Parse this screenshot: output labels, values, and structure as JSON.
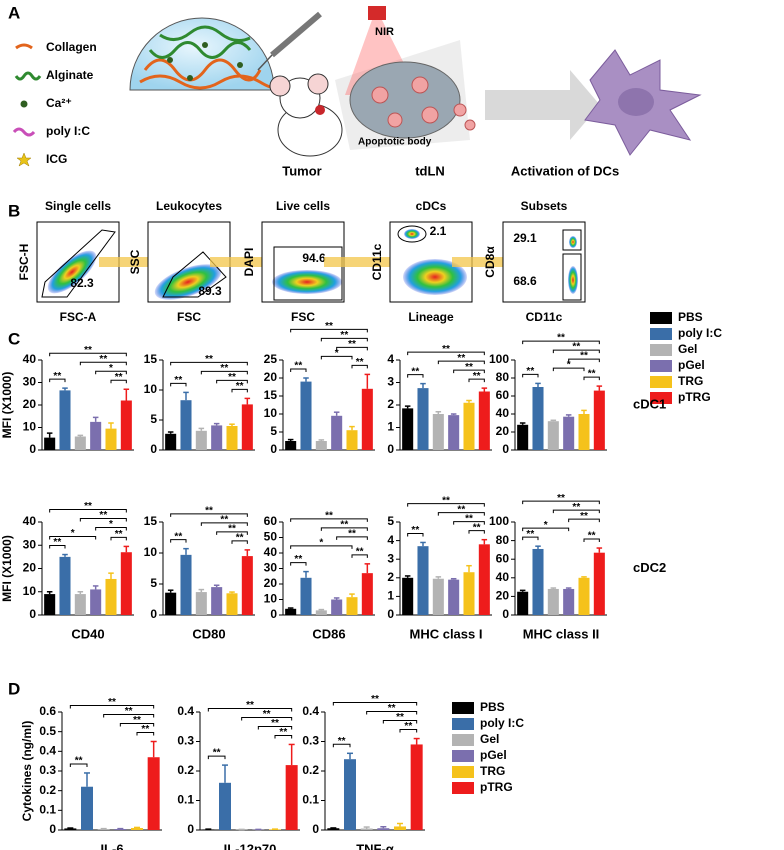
{
  "panel_a": {
    "label": "A",
    "legend": [
      "Collagen",
      "Alginate",
      "Ca²⁺",
      "poly I:C",
      "ICG"
    ],
    "nir": "NIR",
    "apoptotic": "Apoptotic body",
    "tumor": "Tumor",
    "tdln": "tdLN",
    "activation": "Activation of DCs"
  },
  "panel_b": {
    "label": "B",
    "plots": [
      {
        "title": "Single cells",
        "xlabel": "FSC-A",
        "ylabel": "FSC-H",
        "gates": [
          82.3
        ]
      },
      {
        "title": "Leukocytes",
        "xlabel": "FSC",
        "ylabel": "SSC",
        "gates": [
          89.3
        ]
      },
      {
        "title": "Live cells",
        "xlabel": "FSC",
        "ylabel": "DAPI",
        "gates": [
          94.6
        ]
      },
      {
        "title": "cDCs",
        "xlabel": "Lineage",
        "ylabel": "CD11c",
        "gates": [
          2.1
        ]
      },
      {
        "title": "Subsets",
        "xlabel": "CD11c",
        "ylabel": "CD8α",
        "gates": [
          29.1,
          68.6
        ]
      }
    ]
  },
  "panel_c": {
    "label": "C",
    "legend": [
      "PBS",
      "poly I:C",
      "Gel",
      "pGel",
      "TRG",
      "pTRG"
    ]
  },
  "panel_d": {
    "label": "D",
    "legend": [
      "PBS",
      "poly I:C",
      "Gel",
      "pGel",
      "TRG",
      "pTRG"
    ]
  },
  "colors": [
    "#000000",
    "#3a6ea8",
    "#b3b3b3",
    "#7b6fae",
    "#f5c21b",
    "#ee1c1c"
  ],
  "chart_data": [
    {
      "type": "bar",
      "ylabel": "MFI (X1000)",
      "ylim": [
        0,
        40
      ],
      "yticks": [
        0,
        10,
        20,
        30,
        40
      ],
      "values": [
        5.5,
        26.5,
        6,
        12.5,
        9.5,
        22
      ],
      "errors": [
        2,
        1,
        0.5,
        2,
        2.5,
        5
      ],
      "brackets": [
        {
          "from": 0,
          "to": 1,
          "label": "**"
        },
        {
          "from": 4,
          "to": 5,
          "label": "**"
        },
        {
          "from": 3,
          "to": 5,
          "label": "*"
        },
        {
          "from": 2,
          "to": 5,
          "label": "**"
        },
        {
          "from": 0,
          "to": 5,
          "label": "**"
        }
      ]
    },
    {
      "type": "bar",
      "ylim": [
        0,
        15
      ],
      "yticks": [
        0,
        5,
        10,
        15
      ],
      "values": [
        2.7,
        8.3,
        3.2,
        4.1,
        4,
        7.6
      ],
      "errors": [
        0.3,
        1.3,
        0.4,
        0.3,
        0.3,
        1
      ],
      "brackets": [
        {
          "from": 0,
          "to": 1,
          "label": "**"
        },
        {
          "from": 4,
          "to": 5,
          "label": "**"
        },
        {
          "from": 3,
          "to": 5,
          "label": "**"
        },
        {
          "from": 2,
          "to": 5,
          "label": "**"
        },
        {
          "from": 0,
          "to": 5,
          "label": "**"
        }
      ]
    },
    {
      "type": "bar",
      "ylim": [
        0,
        25
      ],
      "yticks": [
        0,
        5,
        10,
        15,
        20,
        25
      ],
      "values": [
        2.5,
        19,
        2.5,
        9.5,
        5.5,
        17
      ],
      "errors": [
        0.4,
        1,
        0.3,
        1,
        1,
        4
      ],
      "brackets": [
        {
          "from": 0,
          "to": 1,
          "label": "**"
        },
        {
          "from": 4,
          "to": 5,
          "label": "**"
        },
        {
          "from": 2,
          "to": 4,
          "label": "*"
        },
        {
          "from": 3,
          "to": 5,
          "label": "**"
        },
        {
          "from": 2,
          "to": 5,
          "label": "**"
        },
        {
          "from": 0,
          "to": 5,
          "label": "**"
        }
      ]
    },
    {
      "type": "bar",
      "ylim": [
        0,
        4
      ],
      "yticks": [
        0,
        1,
        2,
        3,
        4
      ],
      "values": [
        1.85,
        2.75,
        1.6,
        1.55,
        2.1,
        2.6
      ],
      "errors": [
        0.1,
        0.2,
        0.1,
        0.05,
        0.1,
        0.15
      ],
      "brackets": [
        {
          "from": 0,
          "to": 1,
          "label": "**"
        },
        {
          "from": 4,
          "to": 5,
          "label": "**"
        },
        {
          "from": 3,
          "to": 5,
          "label": "**"
        },
        {
          "from": 2,
          "to": 5,
          "label": "**"
        },
        {
          "from": 0,
          "to": 5,
          "label": "**"
        }
      ]
    },
    {
      "type": "bar",
      "row_label": "cDC1",
      "ylim": [
        0,
        100
      ],
      "yticks": [
        0,
        20,
        40,
        60,
        80,
        100
      ],
      "values": [
        28,
        70,
        32,
        37,
        40,
        66
      ],
      "errors": [
        2,
        4,
        1,
        2,
        4,
        5
      ],
      "brackets": [
        {
          "from": 0,
          "to": 1,
          "label": "**"
        },
        {
          "from": 4,
          "to": 5,
          "label": "**"
        },
        {
          "from": 2,
          "to": 4,
          "label": "*"
        },
        {
          "from": 3,
          "to": 5,
          "label": "**"
        },
        {
          "from": 2,
          "to": 5,
          "label": "**"
        },
        {
          "from": 0,
          "to": 5,
          "label": "**"
        }
      ]
    },
    {
      "type": "bar",
      "ylabel": "MFI (X1000)",
      "xlabel": "CD40",
      "ylim": [
        0,
        40
      ],
      "yticks": [
        0,
        10,
        20,
        30,
        40
      ],
      "values": [
        9,
        25,
        9,
        11,
        15.5,
        27
      ],
      "errors": [
        1,
        1,
        1,
        1.5,
        2.5,
        2.5
      ],
      "brackets": [
        {
          "from": 0,
          "to": 1,
          "label": "**"
        },
        {
          "from": 4,
          "to": 5,
          "label": "**"
        },
        {
          "from": 0,
          "to": 3,
          "label": "*"
        },
        {
          "from": 3,
          "to": 5,
          "label": "*"
        },
        {
          "from": 2,
          "to": 5,
          "label": "**"
        },
        {
          "from": 0,
          "to": 5,
          "label": "**"
        }
      ]
    },
    {
      "type": "bar",
      "xlabel": "CD80",
      "ylim": [
        0,
        15
      ],
      "yticks": [
        0,
        5,
        10,
        15
      ],
      "values": [
        3.6,
        9.7,
        3.7,
        4.5,
        3.5,
        9.5
      ],
      "errors": [
        0.4,
        1,
        0.4,
        0.3,
        0.2,
        1
      ],
      "brackets": [
        {
          "from": 0,
          "to": 1,
          "label": "**"
        },
        {
          "from": 4,
          "to": 5,
          "label": "**"
        },
        {
          "from": 3,
          "to": 5,
          "label": "**"
        },
        {
          "from": 2,
          "to": 5,
          "label": "**"
        },
        {
          "from": 0,
          "to": 5,
          "label": "**"
        }
      ]
    },
    {
      "type": "bar",
      "xlabel": "CD86",
      "ylim": [
        0,
        60
      ],
      "yticks": [
        0,
        10,
        20,
        30,
        40,
        50,
        60
      ],
      "values": [
        4,
        24,
        3,
        10,
        11.5,
        27
      ],
      "errors": [
        0.5,
        4,
        0.5,
        1,
        2,
        6
      ],
      "brackets": [
        {
          "from": 0,
          "to": 1,
          "label": "**"
        },
        {
          "from": 4,
          "to": 5,
          "label": "**"
        },
        {
          "from": 0,
          "to": 4,
          "label": "*"
        },
        {
          "from": 3,
          "to": 5,
          "label": "**"
        },
        {
          "from": 2,
          "to": 5,
          "label": "**"
        },
        {
          "from": 0,
          "to": 5,
          "label": "**"
        }
      ]
    },
    {
      "type": "bar",
      "xlabel": "MHC class I",
      "ylim": [
        0,
        5
      ],
      "yticks": [
        0,
        1,
        2,
        3,
        4,
        5
      ],
      "values": [
        2,
        3.7,
        1.95,
        1.9,
        2.3,
        3.8
      ],
      "errors": [
        0.1,
        0.2,
        0.1,
        0.05,
        0.35,
        0.25
      ],
      "brackets": [
        {
          "from": 0,
          "to": 1,
          "label": "**"
        },
        {
          "from": 4,
          "to": 5,
          "label": "**"
        },
        {
          "from": 3,
          "to": 5,
          "label": "**"
        },
        {
          "from": 2,
          "to": 5,
          "label": "**"
        },
        {
          "from": 0,
          "to": 5,
          "label": "**"
        }
      ]
    },
    {
      "type": "bar",
      "xlabel": "MHC class II",
      "row_label": "cDC2",
      "ylim": [
        0,
        100
      ],
      "yticks": [
        0,
        20,
        40,
        60,
        80,
        100
      ],
      "values": [
        25,
        71,
        28,
        28,
        40,
        67
      ],
      "errors": [
        1.5,
        3,
        1,
        1,
        1,
        5
      ],
      "brackets": [
        {
          "from": 0,
          "to": 1,
          "label": "**"
        },
        {
          "from": 4,
          "to": 5,
          "label": "**"
        },
        {
          "from": 0,
          "to": 3,
          "label": "*"
        },
        {
          "from": 3,
          "to": 5,
          "label": "**"
        },
        {
          "from": 2,
          "to": 5,
          "label": "**"
        },
        {
          "from": 0,
          "to": 5,
          "label": "**"
        }
      ]
    },
    {
      "type": "bar",
      "ylabel": "Cytokines (ng/ml)",
      "xlabel": "IL-6",
      "ylim": [
        0,
        0.6
      ],
      "yticks": [
        0,
        0.1,
        0.2,
        0.3,
        0.4,
        0.5,
        0.6
      ],
      "values": [
        0.008,
        0.22,
        0.005,
        0.005,
        0.01,
        0.37
      ],
      "errors": [
        0.002,
        0.07,
        0.002,
        0.002,
        0.003,
        0.08
      ],
      "brackets": [
        {
          "from": 0,
          "to": 1,
          "label": "**"
        },
        {
          "from": 4,
          "to": 5,
          "label": "**"
        },
        {
          "from": 3,
          "to": 5,
          "label": "**"
        },
        {
          "from": 2,
          "to": 5,
          "label": "**"
        },
        {
          "from": 0,
          "to": 5,
          "label": "**"
        }
      ]
    },
    {
      "type": "bar",
      "xlabel": "IL-12p70",
      "ylim": [
        0,
        0.4
      ],
      "yticks": [
        0,
        0.1,
        0.2,
        0.3,
        0.4
      ],
      "values": [
        0.002,
        0.16,
        0.001,
        0.001,
        0.002,
        0.22
      ],
      "errors": [
        0.001,
        0.06,
        0.001,
        0.001,
        0.001,
        0.07
      ],
      "brackets": [
        {
          "from": 0,
          "to": 1,
          "label": "**"
        },
        {
          "from": 4,
          "to": 5,
          "label": "**"
        },
        {
          "from": 3,
          "to": 5,
          "label": "**"
        },
        {
          "from": 2,
          "to": 5,
          "label": "**"
        },
        {
          "from": 0,
          "to": 5,
          "label": "**"
        }
      ]
    },
    {
      "type": "bar",
      "xlabel": "TNF-α",
      "ylim": [
        0,
        0.4
      ],
      "yticks": [
        0,
        0.1,
        0.2,
        0.3,
        0.4
      ],
      "values": [
        0.006,
        0.24,
        0.005,
        0.006,
        0.012,
        0.29
      ],
      "errors": [
        0.001,
        0.02,
        0.005,
        0.005,
        0.01,
        0.02
      ],
      "brackets": [
        {
          "from": 0,
          "to": 1,
          "label": "**"
        },
        {
          "from": 4,
          "to": 5,
          "label": "**"
        },
        {
          "from": 3,
          "to": 5,
          "label": "**"
        },
        {
          "from": 2,
          "to": 5,
          "label": "**"
        },
        {
          "from": 0,
          "to": 5,
          "label": "**"
        }
      ]
    }
  ]
}
